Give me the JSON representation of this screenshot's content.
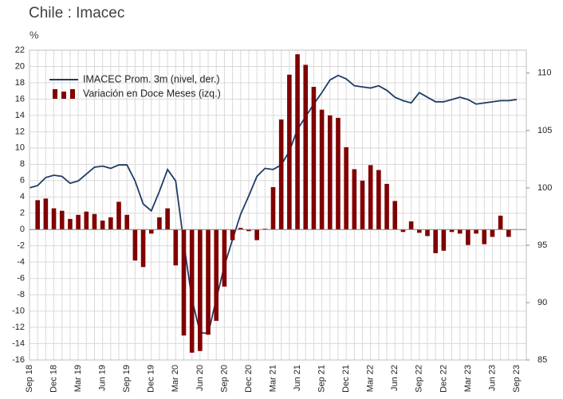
{
  "chart_data": {
    "type": "combo",
    "title": "Chile : Imacec",
    "subtitle": "%",
    "categories": [
      "Sep 18",
      null,
      null,
      "Dec 18",
      null,
      null,
      "Mar 19",
      null,
      null,
      "Jun 19",
      null,
      null,
      "Sep 19",
      null,
      null,
      "Dec 19",
      null,
      null,
      "Mar 20",
      null,
      null,
      "Jun 20",
      null,
      null,
      "Sep 20",
      null,
      null,
      "Dec 20",
      null,
      null,
      "Mar 21",
      null,
      null,
      "Jun 21",
      null,
      null,
      "Sep 21",
      null,
      null,
      "Dec 21",
      null,
      null,
      "Mar 22",
      null,
      null,
      "Jun 22",
      null,
      null,
      "Sep 22",
      null,
      null,
      "Dec 22",
      null,
      null,
      "Mar 23",
      null,
      null,
      "Jun 23",
      null,
      null,
      "Sep 23"
    ],
    "series": [
      {
        "name": "IMACEC  Prom. 3m (nivel, der.)",
        "type": "line",
        "axis": "y2",
        "color": "#1f3b66",
        "values": [
          100.0,
          100.2,
          100.9,
          101.1,
          101.0,
          100.4,
          100.6,
          101.2,
          101.8,
          101.9,
          101.7,
          102.0,
          102.0,
          100.6,
          98.6,
          98.0,
          99.7,
          101.6,
          100.6,
          95.2,
          90.3,
          87.4,
          87.3,
          90.3,
          93.2,
          95.5,
          97.7,
          99.3,
          101.0,
          101.7,
          101.6,
          102.0,
          103.2,
          105.1,
          106.2,
          107.3,
          108.3,
          109.4,
          109.8,
          109.5,
          108.9,
          108.8,
          108.7,
          108.9,
          108.5,
          107.9,
          107.6,
          107.4,
          108.3,
          107.9,
          107.5,
          107.5,
          107.7,
          107.9,
          107.7,
          107.3,
          107.4,
          107.5,
          107.6,
          107.6,
          107.7
        ]
      },
      {
        "name": "Variación en Doce Meses (izq.)",
        "type": "bar",
        "color": "#800000",
        "values": [
          null,
          3.6,
          3.8,
          2.6,
          2.3,
          1.3,
          1.8,
          2.2,
          1.9,
          1.1,
          1.5,
          3.4,
          1.8,
          -3.8,
          -4.6,
          -0.5,
          1.5,
          2.6,
          -4.4,
          -13.0,
          -15.1,
          -14.9,
          -12.9,
          -11.2,
          -7.0,
          -1.3,
          0.2,
          -0.2,
          -1.3,
          0.1,
          5.2,
          13.5,
          19.0,
          21.5,
          20.2,
          17.5,
          14.7,
          14.0,
          13.7,
          10.1,
          7.4,
          6.0,
          7.9,
          7.3,
          5.6,
          3.5,
          -0.3,
          1.0,
          -0.4,
          -0.8,
          -2.9,
          -2.6,
          -0.3,
          -0.5,
          -1.9,
          -0.5,
          -1.8,
          -0.9,
          1.7,
          -0.9,
          null
        ]
      }
    ],
    "ylim": [
      -16,
      22
    ],
    "yticks": [
      -16,
      -14,
      -12,
      -10,
      -8,
      -6,
      -4,
      -2,
      0,
      2,
      4,
      6,
      8,
      10,
      12,
      14,
      16,
      18,
      20,
      22
    ],
    "y2lim": [
      85,
      112
    ],
    "y2ticks": [
      85,
      90,
      95,
      100,
      105,
      110
    ],
    "grid": true,
    "legend": "top-left"
  }
}
